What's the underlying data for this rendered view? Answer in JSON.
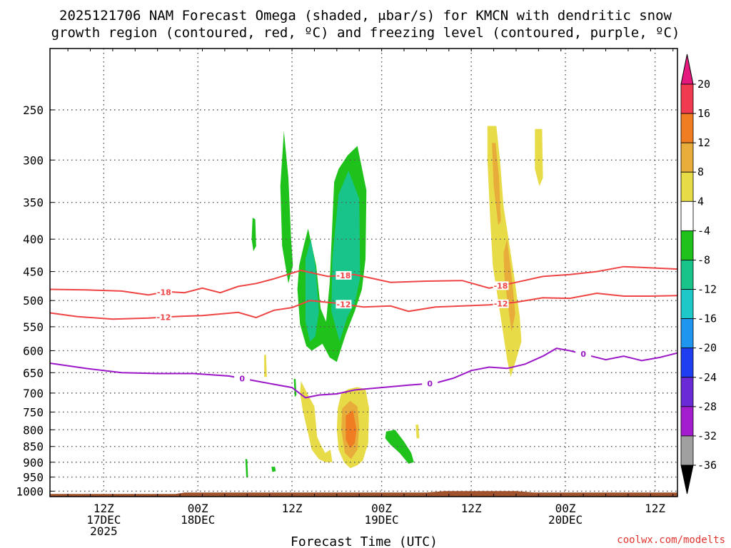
{
  "chart_data": {
    "type": "heatmap",
    "title_line1": "2025121706 NAM Forecast Omega (shaded, μbar/s) for KMCN with dendritic snow",
    "title_line2": "growth region (contoured, red, ºC) and freezing level (contoured, purple, ºC)",
    "xlabel": "Forecast Time (UTC)",
    "credit": "coolwx.com/modelts",
    "x_range_hours": [
      6,
      76
    ],
    "y_range_hPa": [
      1020,
      200
    ],
    "x_ticks": [
      {
        "h": 12,
        "l1": "12Z",
        "l2": "17DEC",
        "l3": "2025"
      },
      {
        "h": 22.5,
        "l1": "00Z",
        "l2": "18DEC",
        "l3": ""
      },
      {
        "h": 33,
        "l1": "12Z",
        "l2": "",
        "l3": ""
      },
      {
        "h": 43,
        "l1": "00Z",
        "l2": "19DEC",
        "l3": ""
      },
      {
        "h": 53,
        "l1": "12Z",
        "l2": "",
        "l3": ""
      },
      {
        "h": 63.5,
        "l1": "00Z",
        "l2": "20DEC",
        "l3": ""
      },
      {
        "h": 73.5,
        "l1": "12Z",
        "l2": "",
        "l3": ""
      }
    ],
    "y_ticks": [
      "250",
      "300",
      "350",
      "400",
      "450",
      "500",
      "550",
      "600",
      "650",
      "700",
      "750",
      "800",
      "850",
      "900",
      "950",
      "1000"
    ],
    "colorbar": {
      "labels": [
        "20",
        "16",
        "12",
        "8",
        "4",
        "-4",
        "-8",
        "-12",
        "-16",
        "-20",
        "-24",
        "-28",
        "-32",
        "-36"
      ],
      "colors": [
        "#f03a50",
        "#f07d22",
        "#e8ac3a",
        "#e8db48",
        "#ffffff",
        "#1fc21a",
        "#18c48a",
        "#1fc8c8",
        "#1e96f0",
        "#1f3ef0",
        "#6a2ad6",
        "#a41ed0",
        "#a0a0a0"
      ],
      "top_arrow": "#e6197f",
      "bottom_arrow": "#000000"
    },
    "series": [
      {
        "name": "-18 C isotherm",
        "color": "#ee4444",
        "label": "-18",
        "points": [
          [
            6,
            480
          ],
          [
            10,
            481
          ],
          [
            14,
            483
          ],
          [
            17,
            490
          ],
          [
            19,
            484
          ],
          [
            21,
            486
          ],
          [
            23,
            478
          ],
          [
            25,
            486
          ],
          [
            27,
            475
          ],
          [
            29,
            470
          ],
          [
            31,
            462
          ],
          [
            34,
            448
          ],
          [
            37,
            458
          ],
          [
            40,
            455
          ],
          [
            44,
            468
          ],
          [
            48,
            466
          ],
          [
            52,
            465
          ],
          [
            55,
            478
          ],
          [
            58,
            468
          ],
          [
            61,
            458
          ],
          [
            64,
            455
          ],
          [
            67,
            450
          ],
          [
            70,
            442
          ],
          [
            73,
            444
          ],
          [
            76,
            446
          ]
        ]
      },
      {
        "name": "-12 C isotherm",
        "color": "#ee4444",
        "label": "-12",
        "points": [
          [
            6,
            523
          ],
          [
            9,
            530
          ],
          [
            13,
            535
          ],
          [
            17,
            533
          ],
          [
            20,
            530
          ],
          [
            23,
            528
          ],
          [
            27,
            522
          ],
          [
            29,
            532
          ],
          [
            31,
            518
          ],
          [
            33,
            513
          ],
          [
            35,
            500
          ],
          [
            38,
            505
          ],
          [
            41,
            512
          ],
          [
            44,
            510
          ],
          [
            46,
            520
          ],
          [
            49,
            512
          ],
          [
            52,
            510
          ],
          [
            55,
            508
          ],
          [
            58,
            503
          ],
          [
            61,
            495
          ],
          [
            64,
            496
          ],
          [
            67,
            487
          ],
          [
            70,
            492
          ],
          [
            73,
            492
          ],
          [
            76,
            491
          ]
        ]
      },
      {
        "name": "0 C freezing level",
        "color": "#9b17c8",
        "label": "0",
        "points": [
          [
            6,
            628
          ],
          [
            10,
            640
          ],
          [
            14,
            650
          ],
          [
            18,
            652
          ],
          [
            22,
            652
          ],
          [
            26,
            658
          ],
          [
            29,
            670
          ],
          [
            31,
            678
          ],
          [
            33,
            686
          ],
          [
            34.5,
            712
          ],
          [
            36,
            705
          ],
          [
            38,
            702
          ],
          [
            40,
            692
          ],
          [
            43,
            686
          ],
          [
            46,
            680
          ],
          [
            49,
            675
          ],
          [
            51,
            663
          ],
          [
            53,
            645
          ],
          [
            55,
            637
          ],
          [
            57,
            640
          ],
          [
            59,
            630
          ],
          [
            61,
            612
          ],
          [
            62.5,
            595
          ],
          [
            64,
            600
          ],
          [
            66,
            610
          ],
          [
            68,
            620
          ],
          [
            70,
            612
          ],
          [
            72,
            622
          ],
          [
            74,
            615
          ],
          [
            76,
            605
          ]
        ]
      }
    ],
    "omega_regions": [
      {
        "color": "#1fc21a",
        "pts": [
          [
            32.1,
            270
          ],
          [
            32.6,
            320
          ],
          [
            32.9,
            400
          ],
          [
            33.1,
            440
          ],
          [
            32.6,
            470
          ],
          [
            31.9,
            410
          ],
          [
            31.7,
            330
          ]
        ]
      },
      {
        "color": "#1fc21a",
        "pts": [
          [
            28.6,
            370
          ],
          [
            28.9,
            372
          ],
          [
            29.0,
            410
          ],
          [
            28.7,
            418
          ],
          [
            28.5,
            400
          ]
        ]
      },
      {
        "color": "#1fc21a",
        "pts": [
          [
            33.8,
            440
          ],
          [
            34.3,
            410
          ],
          [
            34.8,
            385
          ],
          [
            35.7,
            440
          ],
          [
            36.2,
            515
          ],
          [
            36.8,
            540
          ],
          [
            37.2,
            470
          ],
          [
            37.7,
            325
          ],
          [
            38.2,
            310
          ],
          [
            39.2,
            295
          ],
          [
            40.3,
            285
          ],
          [
            41.3,
            335
          ],
          [
            41.2,
            430
          ],
          [
            40.8,
            480
          ],
          [
            40.0,
            520
          ],
          [
            39.0,
            565
          ],
          [
            38.0,
            625
          ],
          [
            37.2,
            615
          ],
          [
            36.4,
            585
          ],
          [
            35.2,
            600
          ],
          [
            34.6,
            590
          ],
          [
            33.9,
            545
          ],
          [
            33.6,
            480
          ]
        ]
      },
      {
        "color": "#18c48a",
        "pts": [
          [
            34.5,
            430
          ],
          [
            35.1,
            400
          ],
          [
            35.6,
            440
          ],
          [
            36.0,
            520
          ],
          [
            35.6,
            570
          ],
          [
            35.0,
            580
          ],
          [
            34.5,
            540
          ]
        ]
      },
      {
        "color": "#18c48a",
        "pts": [
          [
            37.5,
            430
          ],
          [
            38.2,
            340
          ],
          [
            39.3,
            312
          ],
          [
            40.5,
            345
          ],
          [
            40.6,
            460
          ],
          [
            40.0,
            505
          ],
          [
            39.2,
            530
          ],
          [
            38.3,
            580
          ],
          [
            37.4,
            520
          ]
        ]
      },
      {
        "color": "#1fc21a",
        "pts": [
          [
            33.2,
            665
          ],
          [
            33.4,
            665
          ],
          [
            33.5,
            705
          ],
          [
            33.3,
            710
          ]
        ]
      },
      {
        "color": "#1fc21a",
        "pts": [
          [
            43.5,
            805
          ],
          [
            44.5,
            800
          ],
          [
            45.5,
            835
          ],
          [
            46.3,
            870
          ],
          [
            46.6,
            900
          ],
          [
            46.0,
            905
          ],
          [
            45.0,
            870
          ],
          [
            44.0,
            845
          ],
          [
            43.4,
            825
          ]
        ]
      },
      {
        "color": "#1fc21a",
        "pts": [
          [
            27.8,
            890
          ],
          [
            28.0,
            890
          ],
          [
            28.1,
            950
          ],
          [
            27.9,
            952
          ]
        ]
      },
      {
        "color": "#1fc21a",
        "pts": [
          [
            30.7,
            915
          ],
          [
            31.1,
            915
          ],
          [
            31.2,
            930
          ],
          [
            30.8,
            932
          ]
        ]
      },
      {
        "color": "#e8db48",
        "pts": [
          [
            29.9,
            610
          ],
          [
            30.1,
            608
          ],
          [
            30.2,
            660
          ],
          [
            29.9,
            660
          ]
        ]
      },
      {
        "color": "#e8db48",
        "pts": [
          [
            34.0,
            670
          ],
          [
            34.8,
            705
          ],
          [
            35.5,
            735
          ],
          [
            35.8,
            820
          ],
          [
            36.2,
            845
          ],
          [
            36.7,
            870
          ],
          [
            37.3,
            860
          ],
          [
            37.5,
            900
          ],
          [
            36.7,
            900
          ],
          [
            36.0,
            890
          ],
          [
            35.2,
            860
          ],
          [
            34.7,
            800
          ],
          [
            34.2,
            745
          ],
          [
            33.9,
            700
          ]
        ]
      },
      {
        "color": "#e8db48",
        "pts": [
          [
            38.5,
            700
          ],
          [
            39.3,
            690
          ],
          [
            40.3,
            685
          ],
          [
            41.2,
            690
          ],
          [
            41.6,
            740
          ],
          [
            41.5,
            840
          ],
          [
            40.9,
            895
          ],
          [
            40.3,
            910
          ],
          [
            39.5,
            920
          ],
          [
            38.8,
            900
          ],
          [
            38.2,
            860
          ],
          [
            38.0,
            800
          ],
          [
            38.1,
            740
          ]
        ]
      },
      {
        "color": "#e8db48",
        "pts": [
          [
            46.8,
            785
          ],
          [
            47.1,
            785
          ],
          [
            47.2,
            825
          ],
          [
            46.9,
            825
          ]
        ]
      },
      {
        "color": "#e8db48",
        "pts": [
          [
            54.8,
            265
          ],
          [
            55.8,
            265
          ],
          [
            56.2,
            300
          ],
          [
            56.6,
            355
          ],
          [
            57.1,
            395
          ],
          [
            57.8,
            460
          ],
          [
            58.4,
            530
          ],
          [
            58.6,
            580
          ],
          [
            58.0,
            620
          ],
          [
            57.4,
            660
          ],
          [
            57.0,
            620
          ],
          [
            56.4,
            545
          ],
          [
            55.9,
            490
          ],
          [
            55.4,
            440
          ],
          [
            55.1,
            370
          ],
          [
            54.8,
            300
          ]
        ]
      },
      {
        "color": "#e8ac3a",
        "pts": [
          [
            55.3,
            282
          ],
          [
            55.7,
            282
          ],
          [
            56.1,
            320
          ],
          [
            56.3,
            375
          ],
          [
            56.0,
            380
          ],
          [
            55.5,
            330
          ]
        ]
      },
      {
        "color": "#e8ac3a",
        "pts": [
          [
            56.6,
            420
          ],
          [
            57.0,
            400
          ],
          [
            57.6,
            470
          ],
          [
            57.9,
            525
          ],
          [
            57.5,
            560
          ],
          [
            57.1,
            510
          ],
          [
            56.7,
            460
          ]
        ]
      },
      {
        "color": "#e8db48",
        "pts": [
          [
            60.1,
            268
          ],
          [
            60.9,
            268
          ],
          [
            61.0,
            320
          ],
          [
            60.6,
            330
          ],
          [
            60.1,
            310
          ]
        ]
      },
      {
        "color": "#e8ac3a",
        "pts": [
          [
            38.6,
            740
          ],
          [
            39.5,
            720
          ],
          [
            40.3,
            735
          ],
          [
            40.5,
            790
          ],
          [
            40.3,
            860
          ],
          [
            39.6,
            890
          ],
          [
            38.9,
            870
          ],
          [
            38.5,
            800
          ]
        ]
      },
      {
        "color": "#f07d22",
        "pts": [
          [
            39.0,
            760
          ],
          [
            39.8,
            745
          ],
          [
            40.2,
            800
          ],
          [
            40.0,
            840
          ],
          [
            39.5,
            855
          ],
          [
            39.0,
            830
          ]
        ]
      }
    ]
  }
}
